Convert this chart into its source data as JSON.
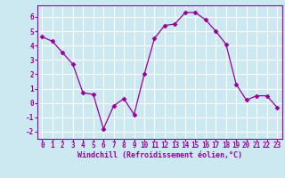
{
  "x": [
    0,
    1,
    2,
    3,
    4,
    5,
    6,
    7,
    8,
    9,
    10,
    11,
    12,
    13,
    14,
    15,
    16,
    17,
    18,
    19,
    20,
    21,
    22,
    23
  ],
  "y": [
    4.6,
    4.3,
    3.5,
    2.7,
    0.7,
    0.6,
    -1.8,
    -0.2,
    0.3,
    -0.8,
    2.0,
    4.5,
    5.4,
    5.5,
    6.3,
    6.3,
    5.8,
    5.0,
    4.1,
    1.3,
    0.2,
    0.5,
    0.5,
    -0.3
  ],
  "line_color": "#990099",
  "marker": "D",
  "marker_size": 2.5,
  "bg_color": "#cce8f0",
  "grid_color": "#ffffff",
  "xlabel": "Windchill (Refroidissement éolien,°C)",
  "xlim": [
    -0.5,
    23.5
  ],
  "ylim": [
    -2.5,
    6.8
  ],
  "yticks": [
    -2,
    -1,
    0,
    1,
    2,
    3,
    4,
    5,
    6
  ],
  "xticks": [
    0,
    1,
    2,
    3,
    4,
    5,
    6,
    7,
    8,
    9,
    10,
    11,
    12,
    13,
    14,
    15,
    16,
    17,
    18,
    19,
    20,
    21,
    22,
    23
  ],
  "color": "#990099"
}
